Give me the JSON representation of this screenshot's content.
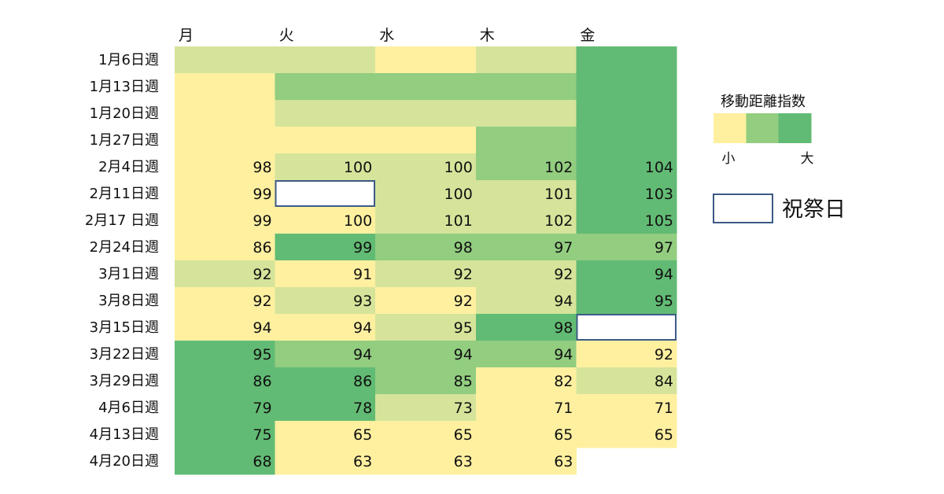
{
  "chart_data": {
    "type": "heatmap",
    "title": "",
    "columns": [
      "月",
      "火",
      "水",
      "木",
      "金"
    ],
    "rows": [
      "1月6日週",
      "1月13日週",
      "1月20日週",
      "1月27日週",
      "2月4日週",
      "2月11日週",
      "2月17 日週",
      "2月24日週",
      "3月1日週",
      "3月8日週",
      "3月15日週",
      "3月22日週",
      "3月29日週",
      "4月6日週",
      "4月13日週",
      "4月20日週"
    ],
    "color_levels": [
      [
        1,
        1,
        0,
        1,
        3
      ],
      [
        0,
        2,
        2,
        2,
        3
      ],
      [
        0,
        1,
        1,
        1,
        3
      ],
      [
        0,
        0,
        0,
        2,
        3
      ],
      [
        0,
        1,
        1,
        2,
        3
      ],
      [
        0,
        null,
        1,
        1,
        3
      ],
      [
        0,
        0,
        1,
        1,
        3
      ],
      [
        0,
        3,
        2,
        2,
        2
      ],
      [
        1,
        0,
        1,
        1,
        3
      ],
      [
        0,
        1,
        0,
        1,
        3
      ],
      [
        0,
        0,
        1,
        3,
        null
      ],
      [
        3,
        2,
        2,
        2,
        0
      ],
      [
        3,
        3,
        2,
        0,
        1
      ],
      [
        3,
        3,
        1,
        0,
        0
      ],
      [
        3,
        0,
        0,
        0,
        0
      ],
      [
        3,
        0,
        0,
        0,
        "blank"
      ]
    ],
    "values": [
      [
        null,
        null,
        null,
        null,
        null
      ],
      [
        null,
        null,
        null,
        null,
        null
      ],
      [
        null,
        null,
        null,
        null,
        null
      ],
      [
        null,
        null,
        null,
        null,
        null
      ],
      [
        98,
        100,
        100,
        102,
        104
      ],
      [
        99,
        null,
        100,
        101,
        103
      ],
      [
        99,
        100,
        101,
        102,
        105
      ],
      [
        86,
        99,
        98,
        97,
        97
      ],
      [
        92,
        91,
        92,
        92,
        94
      ],
      [
        92,
        93,
        92,
        94,
        95
      ],
      [
        94,
        94,
        95,
        98,
        null
      ],
      [
        95,
        94,
        94,
        94,
        92
      ],
      [
        86,
        86,
        85,
        82,
        84
      ],
      [
        79,
        78,
        73,
        71,
        71
      ],
      [
        75,
        65,
        65,
        65,
        65
      ],
      [
        68,
        63,
        63,
        63,
        null
      ]
    ],
    "holidays": [
      [
        5,
        1
      ],
      [
        10,
        4
      ]
    ],
    "palette": [
      "#fff0a0",
      "#d5e49a",
      "#92cd80",
      "#62bb74"
    ],
    "holiday_fill": "#ffffff",
    "holiday_border": "#3c5a85",
    "legend": {
      "title": "移動距離指数",
      "low_label": "小",
      "high_label": "大",
      "holiday_label": "祝祭日",
      "placement": "right"
    }
  }
}
